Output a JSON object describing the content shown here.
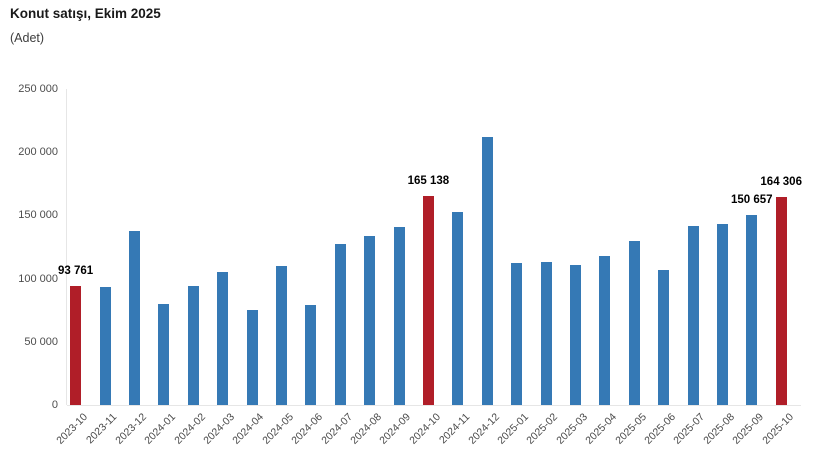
{
  "header": {
    "title": "Konut satışı, Ekim 2025",
    "subtitle": "(Adet)"
  },
  "chart_data": {
    "type": "bar",
    "title": "Konut satışı, Ekim 2025",
    "ylabel": "Adet",
    "xlabel": "",
    "ylim": [
      0,
      250000
    ],
    "grid": false,
    "legend": false,
    "ytick_labels": [
      "0",
      "50 000",
      "100 000",
      "150 000",
      "200 000",
      "250 000"
    ],
    "categories": [
      "2023-10",
      "2023-11",
      "2023-12",
      "2024-01",
      "2024-02",
      "2024-03",
      "2024-04",
      "2024-05",
      "2024-06",
      "2024-07",
      "2024-08",
      "2024-09",
      "2024-10",
      "2024-11",
      "2024-12",
      "2025-01",
      "2025-02",
      "2025-03",
      "2025-04",
      "2025-05",
      "2025-06",
      "2025-07",
      "2025-08",
      "2025-09",
      "2025-10"
    ],
    "values": [
      93761,
      93000,
      138000,
      80000,
      94000,
      105000,
      75000,
      110000,
      79000,
      127000,
      134000,
      141000,
      165138,
      153000,
      212000,
      112000,
      113000,
      111000,
      118000,
      130000,
      107000,
      142000,
      143000,
      150657,
      164306
    ],
    "highlighted_categories": [
      "2023-10",
      "2024-10",
      "2025-10"
    ],
    "data_labels": [
      {
        "category": "2023-10",
        "text": "93 761"
      },
      {
        "category": "2024-10",
        "text": "165 138"
      },
      {
        "category": "2025-09",
        "text": "150 657"
      },
      {
        "category": "2025-10",
        "text": "164 306"
      }
    ],
    "colors": {
      "bar": "#3579b5",
      "bar_highlight": "#b01e28",
      "axis": "#e6e6e6",
      "tick_text": "#4d4d4d",
      "title_text": "#191919",
      "data_label_text": "#000000"
    }
  }
}
